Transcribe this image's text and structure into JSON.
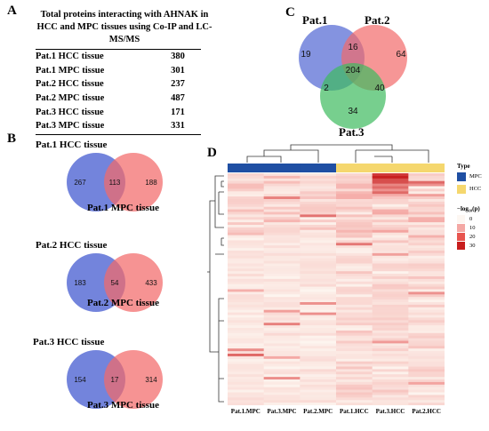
{
  "panels": {
    "a": "A",
    "b": "B",
    "c": "C",
    "d": "D"
  },
  "table": {
    "title": "Total proteins interacting with AHNAK in HCC and MPC tissues using Co-IP and LC-MS/MS",
    "rows": [
      {
        "label": "Pat.1 HCC tissue",
        "value": "380"
      },
      {
        "label": "Pat.1 MPC tissue",
        "value": "301"
      },
      {
        "label": "Pat.2 HCC tissue",
        "value": "237"
      },
      {
        "label": "Pat.2 MPC tissue",
        "value": "487"
      },
      {
        "label": "Pat.3 HCC tissue",
        "value": "171"
      },
      {
        "label": "Pat.3 MPC tissue",
        "value": "331"
      }
    ]
  },
  "venns_b": [
    {
      "top": "Pat.1 HCC tissue",
      "bottom": "Pat.1 MPC tissue",
      "left": "267",
      "mid": "113",
      "right": "188"
    },
    {
      "top": "Pat.2 HCC tissue",
      "bottom": "Pat.2 MPC tissue",
      "left": "183",
      "mid": "54",
      "right": "433"
    },
    {
      "top": "Pat.3 HCC tissue",
      "bottom": "Pat.3 MPC tissue",
      "left": "154",
      "mid": "17",
      "right": "314"
    }
  ],
  "venn_c": {
    "labels": {
      "a": "Pat.1",
      "b": "Pat.2",
      "c": "Pat.3"
    },
    "values": {
      "a_only": "19",
      "ab": "16",
      "b_only": "64",
      "abc": "204",
      "ac": "2",
      "bc": "40",
      "c_only": "34"
    },
    "colors": {
      "a": "#5b6fd6",
      "b": "#f26a6a",
      "c": "#3dbb5e"
    }
  },
  "heatmap": {
    "columns": [
      "Pat.1.MPC",
      "Pat.3.MPC",
      "Pat.2.MPC",
      "Pat.1.HCC",
      "Pat.3.HCC",
      "Pat.2.HCC"
    ],
    "types": [
      "MPC",
      "MPC",
      "MPC",
      "HCC",
      "HCC",
      "HCC"
    ],
    "legend": {
      "type_title": "Type",
      "type_items": [
        {
          "label": "MPC",
          "color": "#1f4fa3"
        },
        {
          "label": "HCC",
          "color": "#f5d76e"
        }
      ],
      "scale_title": "−log₁₀(p)",
      "scale_items": [
        {
          "label": "0",
          "color": "#fdf7f2"
        },
        {
          "label": "10",
          "color": "#f4a8a4"
        },
        {
          "label": "20",
          "color": "#e8554f"
        },
        {
          "label": "30",
          "color": "#c81e1e"
        }
      ]
    }
  }
}
